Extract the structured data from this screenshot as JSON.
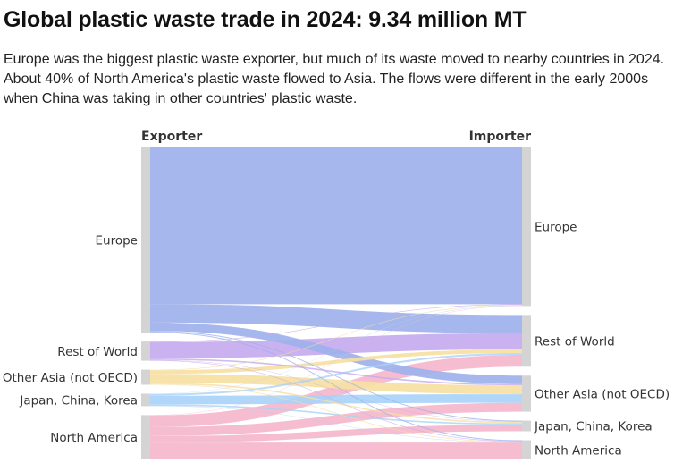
{
  "title": "Global plastic waste trade in 2024: 9.34 million MT",
  "subtitle": "Europe was the biggest plastic waste exporter, but much of its waste moved to nearby countries in 2024. About 40% of North America's plastic waste flowed to Asia. The flows were different in the early 2000s when China was taking in other countries' plastic waste.",
  "chart_data": {
    "type": "sankey",
    "title": "Global plastic waste trade in 2024: 9.34 million MT",
    "subtitle": "Europe was the biggest plastic waste exporter, but much of its waste moved to nearby countries in 2024. About 40% of North America's plastic waste flowed to Asia. The flows were different in the early 2000s when China was taking in other countries' plastic waste.",
    "unit": "million MT",
    "total": 9.34,
    "source_header": "Exporter",
    "target_header": "Importer",
    "sources": [
      {
        "name": "Europe",
        "value": 6.26,
        "color": "#9eb1ec"
      },
      {
        "name": "Rest of World",
        "value": 0.65,
        "color": "#c6aaee"
      },
      {
        "name": "Other Asia (not OECD)",
        "value": 0.51,
        "color": "#f6dfa2"
      },
      {
        "name": "Japan, China, Korea",
        "value": 0.42,
        "color": "#a9d2f9"
      },
      {
        "name": "North America",
        "value": 1.5,
        "color": "#f5b7cc"
      }
    ],
    "targets": [
      {
        "name": "Europe",
        "value": 5.36
      },
      {
        "name": "Rest of World",
        "value": 1.75
      },
      {
        "name": "Other Asia (not OECD)",
        "value": 1.22
      },
      {
        "name": "Japan, China, Korea",
        "value": 0.36
      },
      {
        "name": "North America",
        "value": 0.65
      }
    ],
    "links": [
      {
        "source": "Europe",
        "target": "Europe",
        "value": 5.3
      },
      {
        "source": "Europe",
        "target": "Rest of World",
        "value": 0.62
      },
      {
        "source": "Europe",
        "target": "Other Asia (not OECD)",
        "value": 0.28
      },
      {
        "source": "Europe",
        "target": "Japan, China, Korea",
        "value": 0.03
      },
      {
        "source": "Europe",
        "target": "North America",
        "value": 0.03
      },
      {
        "source": "Rest of World",
        "target": "Europe",
        "value": 0.02
      },
      {
        "source": "Rest of World",
        "target": "Rest of World",
        "value": 0.55
      },
      {
        "source": "Rest of World",
        "target": "Other Asia (not OECD)",
        "value": 0.05
      },
      {
        "source": "Rest of World",
        "target": "Japan, China, Korea",
        "value": 0.01
      },
      {
        "source": "Rest of World",
        "target": "North America",
        "value": 0.02
      },
      {
        "source": "Other Asia (not OECD)",
        "target": "Europe",
        "value": 0.02
      },
      {
        "source": "Other Asia (not OECD)",
        "target": "Rest of World",
        "value": 0.12
      },
      {
        "source": "Other Asia (not OECD)",
        "target": "Other Asia (not OECD)",
        "value": 0.3
      },
      {
        "source": "Other Asia (not OECD)",
        "target": "Japan, China, Korea",
        "value": 0.05
      },
      {
        "source": "Other Asia (not OECD)",
        "target": "North America",
        "value": 0.02
      },
      {
        "source": "Japan, China, Korea",
        "target": "Europe",
        "value": 0.01
      },
      {
        "source": "Japan, China, Korea",
        "target": "Rest of World",
        "value": 0.06
      },
      {
        "source": "Japan, China, Korea",
        "target": "Other Asia (not OECD)",
        "value": 0.29
      },
      {
        "source": "Japan, China, Korea",
        "target": "Japan, China, Korea",
        "value": 0.05
      },
      {
        "source": "Japan, China, Korea",
        "target": "North America",
        "value": 0.01
      },
      {
        "source": "North America",
        "target": "Europe",
        "value": 0.01
      },
      {
        "source": "North America",
        "target": "Rest of World",
        "value": 0.4
      },
      {
        "source": "North America",
        "target": "Other Asia (not OECD)",
        "value": 0.3
      },
      {
        "source": "North America",
        "target": "Japan, China, Korea",
        "value": 0.22
      },
      {
        "source": "North America",
        "target": "North America",
        "value": 0.57
      }
    ]
  }
}
